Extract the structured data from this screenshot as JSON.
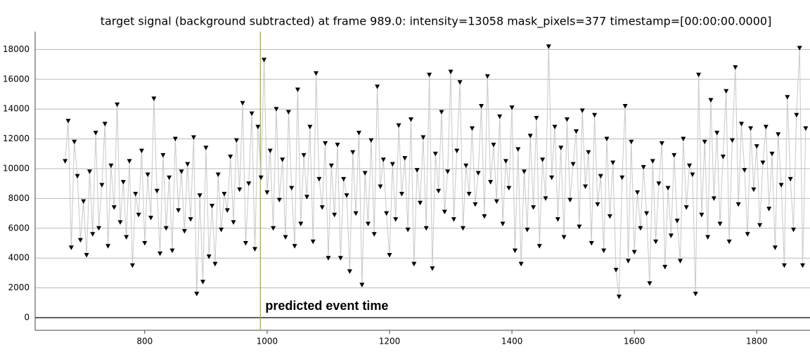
{
  "chart_data": {
    "type": "scatter",
    "title": "target signal (background subtracted) at frame 989.0: intensity=13058 mask_pixels=377 timestamp=[00:00:00.0000]",
    "annotation": "predicted event time",
    "event_x": 989,
    "color": "#000000",
    "line_color": "#c8c8c8",
    "event_color": "#a8a860",
    "xlim": [
      621,
      1887
    ],
    "ylim": [
      -850,
      19200
    ],
    "xticks": [
      800,
      1000,
      1200,
      1400,
      1600,
      1800
    ],
    "yticks": [
      0,
      2000,
      4000,
      6000,
      8000,
      10000,
      12000,
      14000,
      16000,
      18000
    ],
    "grid": true,
    "x": [
      670,
      675,
      680,
      685,
      690,
      695,
      700,
      705,
      710,
      715,
      720,
      725,
      730,
      735,
      740,
      745,
      750,
      755,
      760,
      765,
      770,
      775,
      780,
      785,
      790,
      795,
      800,
      805,
      810,
      815,
      820,
      825,
      830,
      835,
      840,
      845,
      850,
      855,
      860,
      865,
      870,
      875,
      880,
      885,
      890,
      895,
      900,
      905,
      910,
      915,
      920,
      925,
      930,
      935,
      940,
      945,
      950,
      955,
      960,
      965,
      970,
      975,
      980,
      985,
      990,
      995,
      1000,
      1005,
      1010,
      1015,
      1020,
      1025,
      1030,
      1035,
      1040,
      1045,
      1050,
      1055,
      1060,
      1065,
      1070,
      1075,
      1080,
      1085,
      1090,
      1095,
      1100,
      1105,
      1110,
      1115,
      1120,
      1125,
      1130,
      1135,
      1140,
      1145,
      1150,
      1155,
      1160,
      1165,
      1170,
      1175,
      1180,
      1185,
      1190,
      1195,
      1200,
      1205,
      1210,
      1215,
      1220,
      1225,
      1230,
      1235,
      1240,
      1245,
      1250,
      1255,
      1260,
      1265,
      1270,
      1275,
      1280,
      1285,
      1290,
      1295,
      1300,
      1305,
      1310,
      1315,
      1320,
      1325,
      1330,
      1335,
      1340,
      1345,
      1350,
      1355,
      1360,
      1365,
      1370,
      1375,
      1380,
      1385,
      1390,
      1395,
      1400,
      1405,
      1410,
      1415,
      1420,
      1425,
      1430,
      1435,
      1440,
      1445,
      1450,
      1455,
      1460,
      1465,
      1470,
      1475,
      1480,
      1485,
      1490,
      1495,
      1500,
      1505,
      1510,
      1515,
      1520,
      1525,
      1530,
      1535,
      1540,
      1545,
      1550,
      1555,
      1560,
      1565,
      1570,
      1575,
      1580,
      1585,
      1590,
      1595,
      1600,
      1605,
      1610,
      1615,
      1620,
      1625,
      1630,
      1635,
      1640,
      1645,
      1650,
      1655,
      1660,
      1665,
      1670,
      1675,
      1680,
      1685,
      1690,
      1695,
      1700,
      1705,
      1710,
      1715,
      1720,
      1725,
      1730,
      1735,
      1740,
      1745,
      1750,
      1755,
      1760,
      1765,
      1770,
      1775,
      1780,
      1785,
      1790,
      1795,
      1800,
      1805,
      1810,
      1815,
      1820,
      1825,
      1830,
      1835,
      1840,
      1845,
      1850,
      1855,
      1860,
      1865,
      1870,
      1875,
      1880
    ],
    "values": [
      10500,
      13200,
      4700,
      11800,
      9500,
      5200,
      7800,
      4200,
      9800,
      5600,
      12400,
      6000,
      8900,
      13000,
      4800,
      10200,
      7400,
      14300,
      6400,
      9100,
      5400,
      10500,
      3500,
      8300,
      6900,
      11200,
      5000,
      9600,
      6700,
      14700,
      8500,
      4300,
      10900,
      6000,
      9400,
      4500,
      12000,
      7200,
      9800,
      5800,
      10300,
      6600,
      12100,
      1600,
      8200,
      2400,
      11400,
      4100,
      7500,
      3600,
      9600,
      5900,
      8300,
      7200,
      10800,
      6400,
      11900,
      8600,
      14400,
      5000,
      9000,
      13700,
      4600,
      12800,
      9400,
      17300,
      8400,
      11200,
      6000,
      14000,
      7900,
      10600,
      5400,
      13800,
      8700,
      4800,
      15300,
      6300,
      10900,
      8100,
      12800,
      5100,
      16400,
      9300,
      7400,
      11700,
      4000,
      10200,
      6900,
      11600,
      4000,
      9300,
      8200,
      3100,
      11100,
      7000,
      12400,
      2200,
      9700,
      6300,
      11900,
      5600,
      15500,
      8800,
      10600,
      7000,
      4200,
      10300,
      6600,
      12900,
      8300,
      10700,
      5900,
      13300,
      3600,
      9900,
      7700,
      12100,
      6000,
      16300,
      3300,
      11000,
      8500,
      13800,
      7100,
      9800,
      16500,
      6600,
      11200,
      15800,
      6000,
      10200,
      8300,
      12700,
      7600,
      9700,
      14200,
      6800,
      16200,
      9100,
      11600,
      7800,
      13500,
      6300,
      10500,
      8700,
      14100,
      4500,
      11300,
      3600,
      9800,
      5900,
      12200,
      7400,
      13400,
      4800,
      10600,
      8000,
      18200,
      9400,
      12800,
      6600,
      11400,
      5400,
      13300,
      7900,
      10300,
      12500,
      6100,
      13900,
      8800,
      11100,
      5000,
      13600,
      7600,
      9500,
      4500,
      12000,
      6800,
      10400,
      3200,
      1400,
      9400,
      14200,
      3800,
      11800,
      4400,
      8400,
      6000,
      10100,
      7000,
      2300,
      10500,
      5100,
      9000,
      11700,
      3400,
      8700,
      5500,
      10900,
      6500,
      3800,
      12000,
      7400,
      10200,
      9600,
      1600,
      16300,
      6900,
      11800,
      5400,
      14600,
      8000,
      12400,
      6300,
      10800,
      15200,
      5100,
      11900,
      16800,
      7600,
      13000,
      9900,
      5600,
      12700,
      8600,
      11500,
      6200,
      10400,
      12800,
      7300,
      11000,
      4700,
      12300,
      8900,
      3500,
      14800,
      9300,
      5900,
      13600,
      18100,
      3500,
      12700
    ]
  }
}
